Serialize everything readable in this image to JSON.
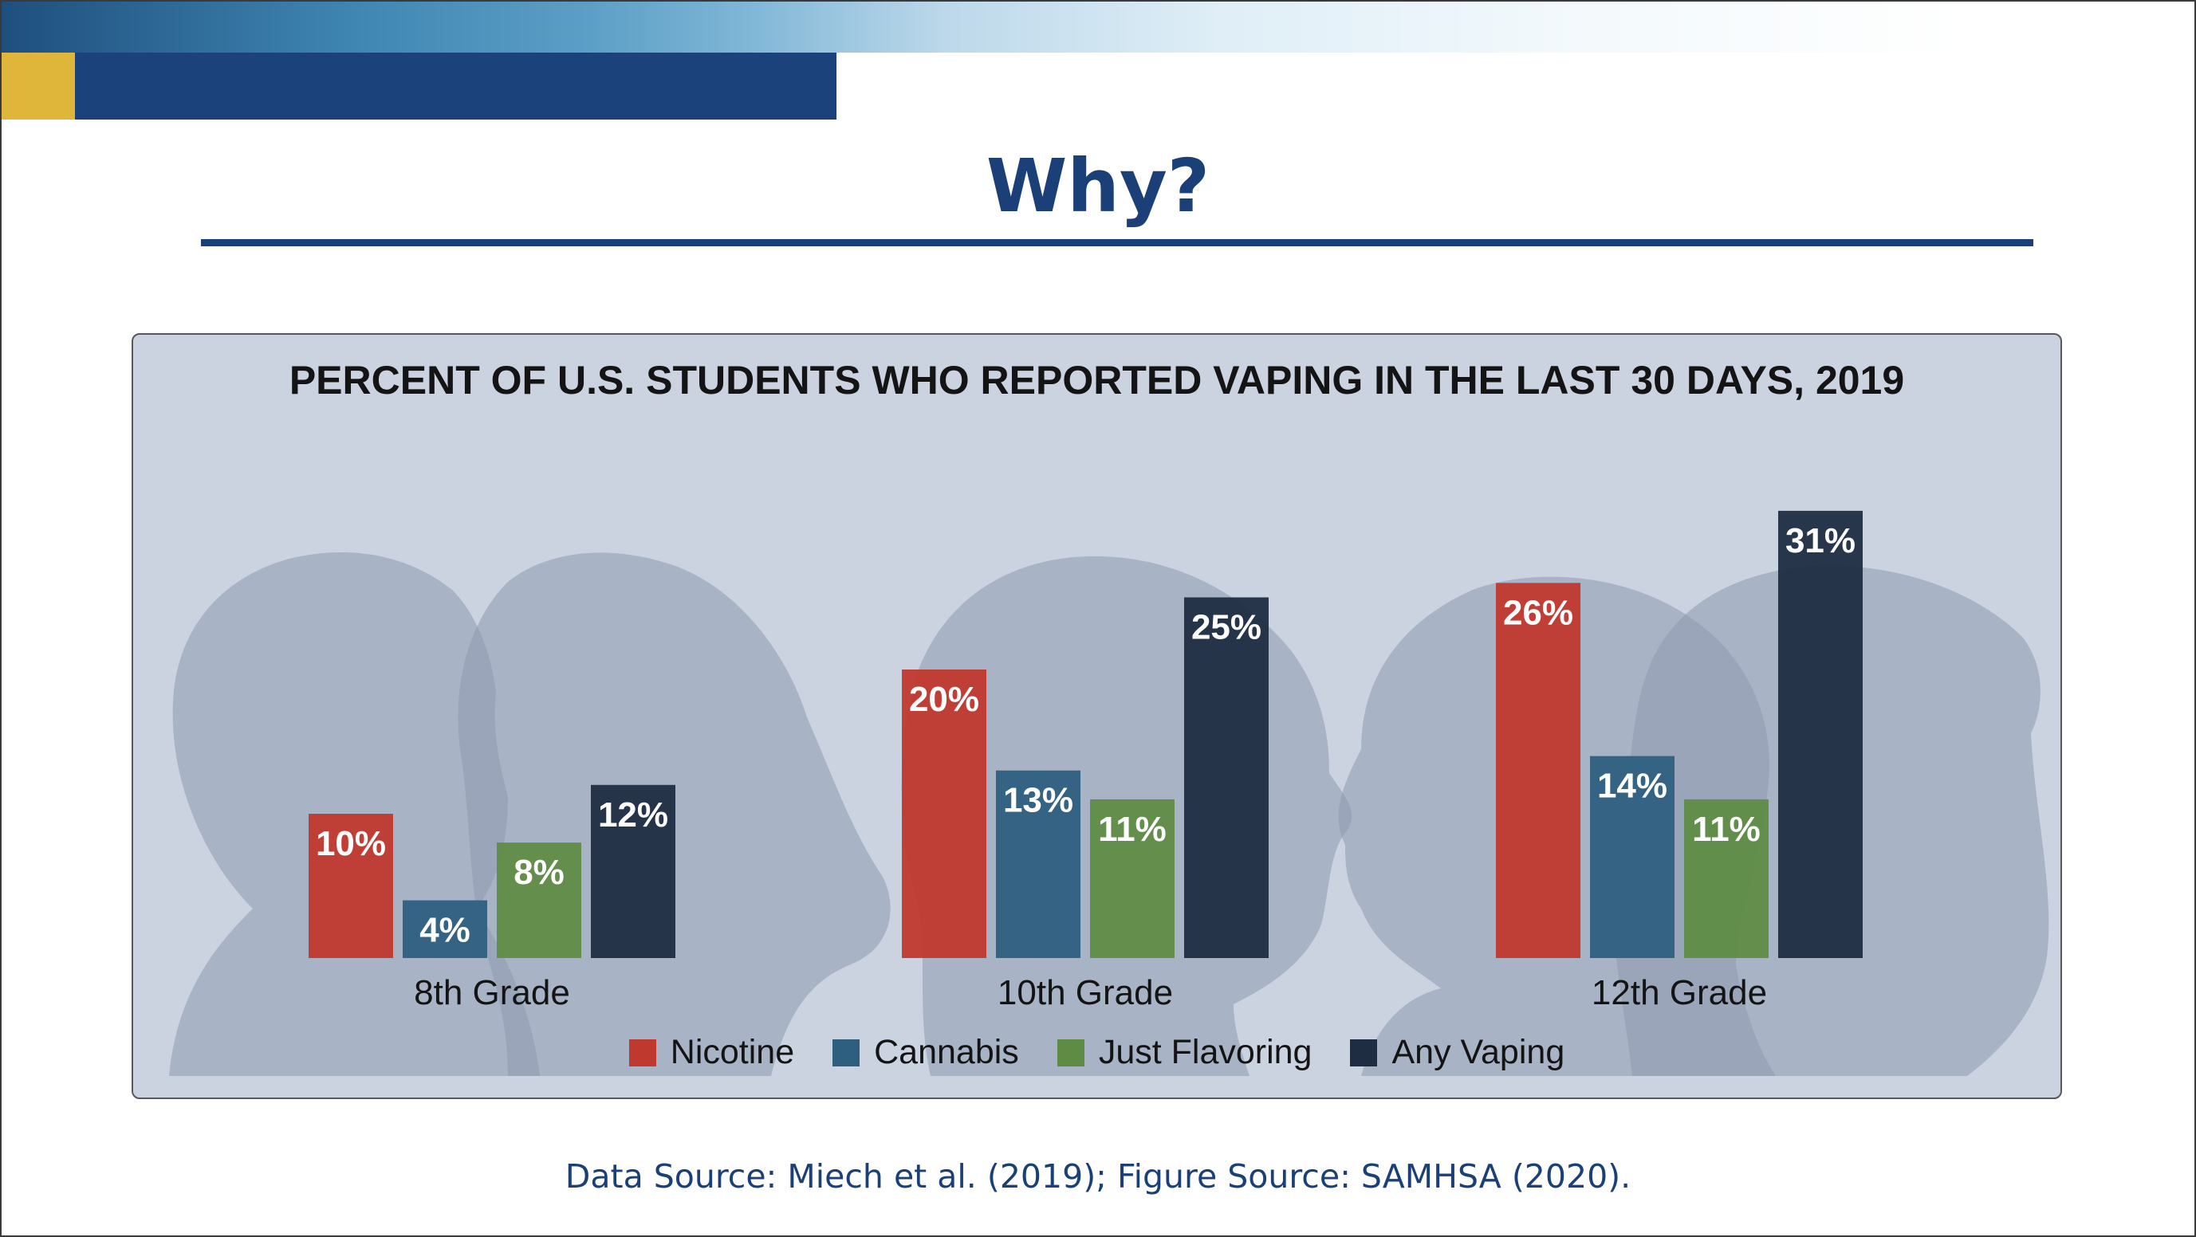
{
  "slide": {
    "title": "Why?",
    "source_note": "Data Source: Miech et al. (2019); Figure Source: SAMHSA (2020)."
  },
  "chart_data": {
    "type": "bar",
    "title": "PERCENT OF U.S. STUDENTS WHO REPORTED VAPING IN THE LAST 30 DAYS, 2019",
    "categories": [
      "8th Grade",
      "10th Grade",
      "12th Grade"
    ],
    "series": [
      {
        "name": "Nicotine",
        "color": "#c0392f",
        "values": [
          10,
          20,
          26
        ],
        "labels": [
          "10%",
          "20%",
          "26%"
        ]
      },
      {
        "name": "Cannabis",
        "color": "#2e5f7f",
        "values": [
          4,
          13,
          14
        ],
        "labels": [
          "4%",
          "13%",
          "14%"
        ]
      },
      {
        "name": "Just Flavoring",
        "color": "#5f8c45",
        "values": [
          8,
          11,
          11
        ],
        "labels": [
          "8%",
          "11%",
          "11%"
        ]
      },
      {
        "name": "Any Vaping",
        "color": "#1e2d41",
        "values": [
          12,
          25,
          31
        ],
        "labels": [
          "12%",
          "25%",
          "31%"
        ]
      }
    ],
    "ylim": [
      0,
      32
    ],
    "grid": false,
    "legend_position": "bottom",
    "background": "silhouettes of student profiles"
  }
}
